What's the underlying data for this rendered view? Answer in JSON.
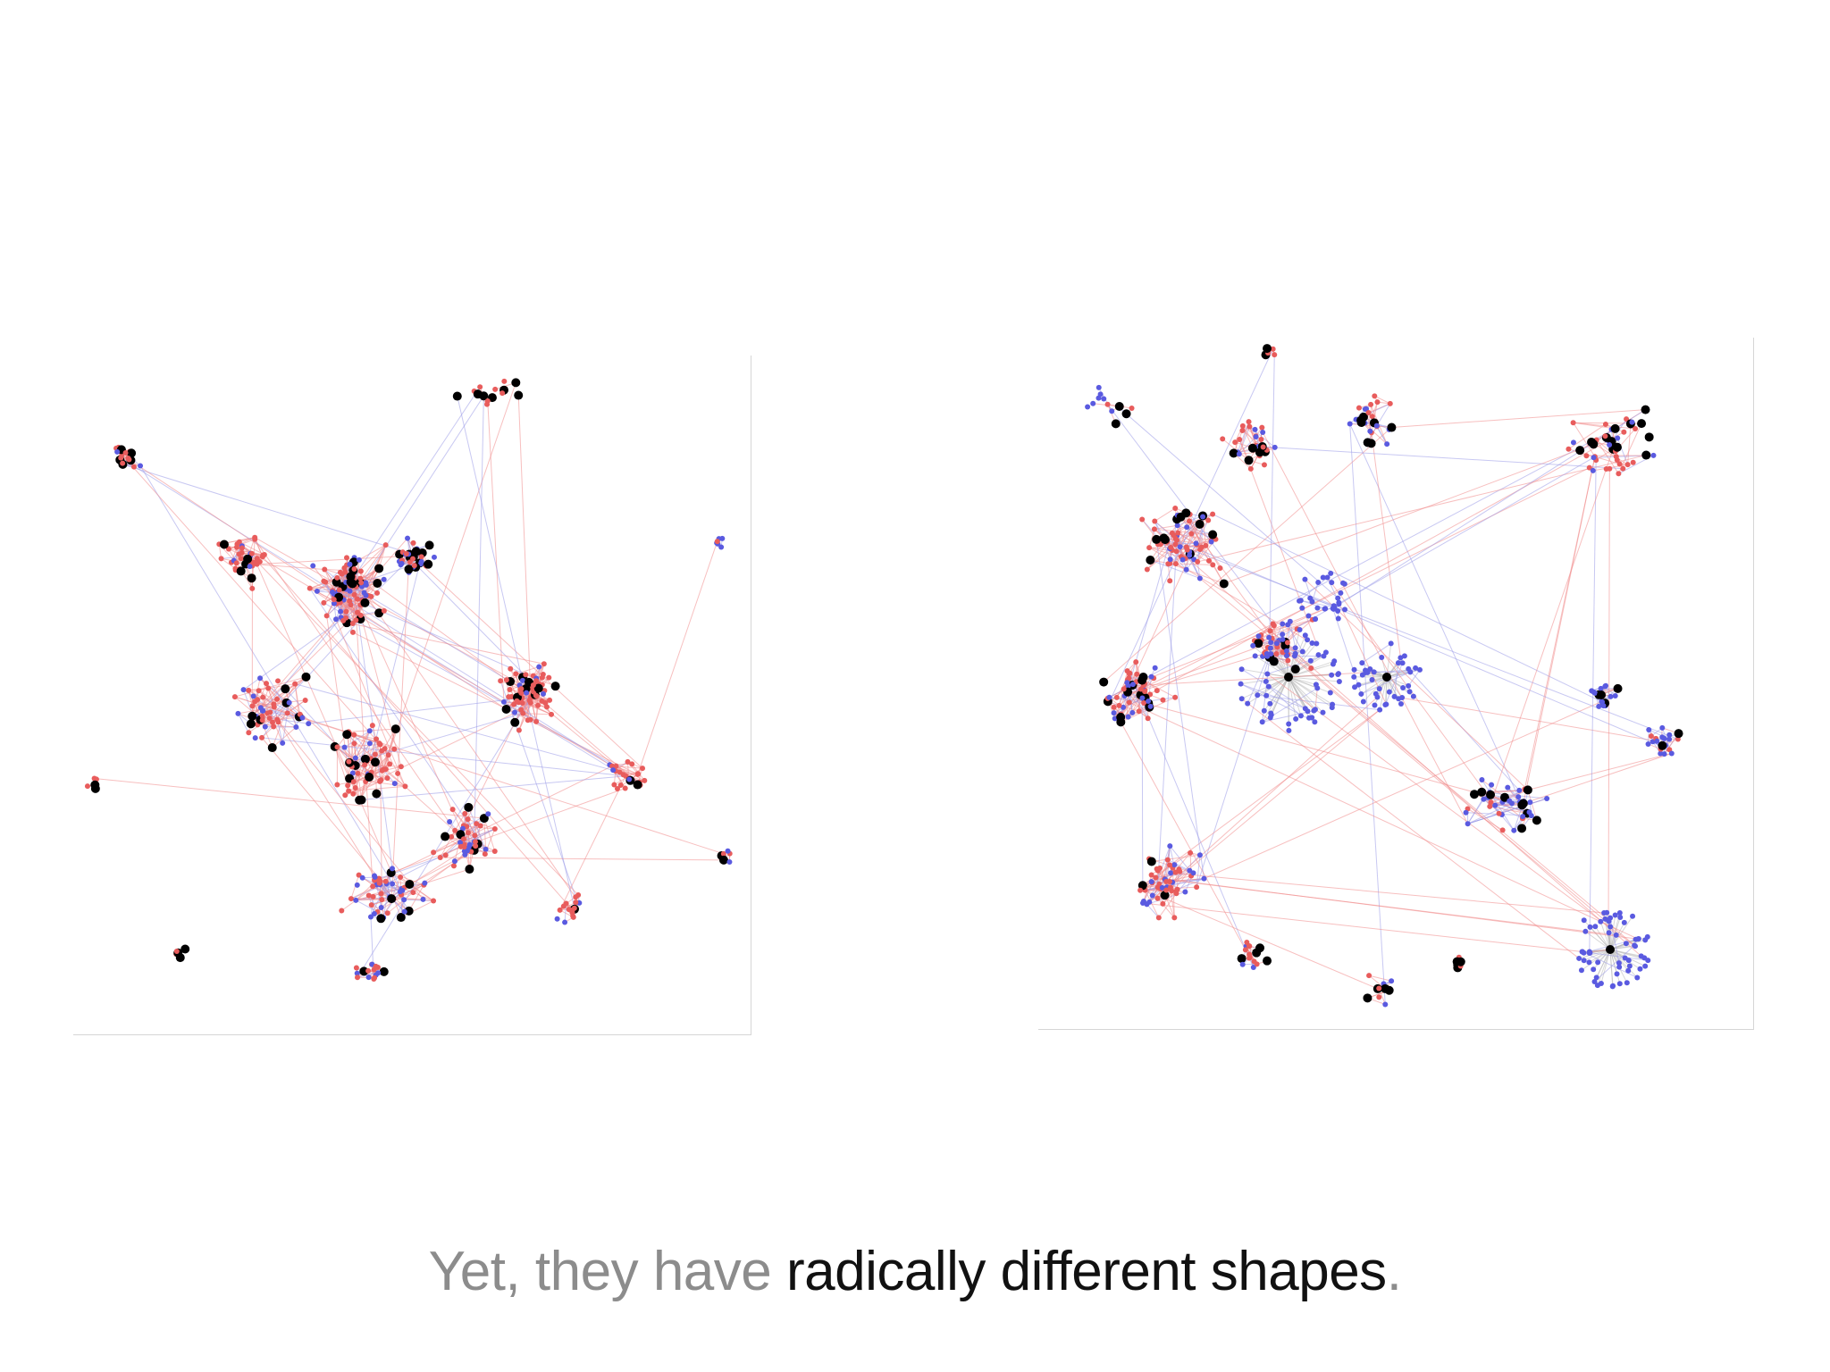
{
  "slide": {
    "caption_muted": "Yet, they have ",
    "caption_strong": "radically different shapes",
    "caption_end": "."
  },
  "colors": {
    "background": "#ffffff",
    "node_red": "#e85c5c",
    "node_blue": "#5a5ae0",
    "node_black": "#000000",
    "edge_red": "#f08a8a",
    "edge_blue": "#9a9ae8",
    "edge_gray": "#b8b8b8",
    "caption_muted": "#8c8c8c",
    "caption_strong": "#111111"
  },
  "diagrams": [
    {
      "name": "network-graph-left",
      "layout": "dense central clusters with scattered small components"
    },
    {
      "name": "network-graph-right",
      "layout": "ring of clusters with blue star-shaped hubs"
    }
  ]
}
